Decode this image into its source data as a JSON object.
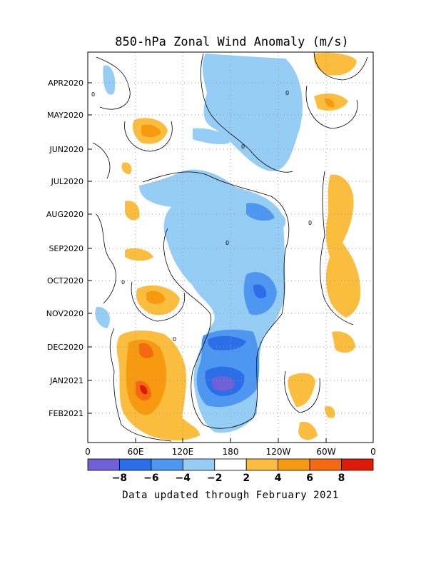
{
  "chart_data": {
    "type": "heatmap",
    "title": "850-hPa Zonal Wind Anomaly (m/s)",
    "y_tick_labels": [
      "APR2020",
      "MAY2020",
      "JUN2020",
      "JUL2020",
      "AUG2020",
      "SEP2020",
      "OCT2020",
      "NOV2020",
      "DEC2020",
      "JAN2021",
      "FEB2021"
    ],
    "x_tick_labels": [
      "0",
      "60E",
      "120E",
      "180",
      "120W",
      "60W",
      "0"
    ],
    "colorbar": {
      "tick_labels": [
        "-8",
        "-6",
        "-4",
        "-2",
        "2",
        "4",
        "6",
        "8"
      ],
      "bins": [
        {
          "range": "< -8",
          "color": "#7060d8"
        },
        {
          "range": "-8 to -6",
          "color": "#2c6ee8"
        },
        {
          "range": "-6 to -4",
          "color": "#4d97f0"
        },
        {
          "range": "-4 to -2",
          "color": "#96cdf5"
        },
        {
          "range": "-2 to 2",
          "color": "#ffffff"
        },
        {
          "range": "2 to 4",
          "color": "#fbbd3e"
        },
        {
          "range": "4 to 6",
          "color": "#f89a10"
        },
        {
          "range": "6 to 8",
          "color": "#f56a10"
        },
        {
          "range": "> 8",
          "color": "#dc1c08"
        }
      ]
    },
    "footer": "Data updated through February 2021",
    "anomaly_regions": [
      {
        "sign": "easterly",
        "level": "-2 to -4",
        "lon": "150E-120W",
        "period": "APR2020-JUN2020"
      },
      {
        "sign": "easterly",
        "level": "-2 to -6",
        "lon": "120E-150W",
        "period": "JUL2020-FEB2021"
      },
      {
        "sign": "easterly",
        "level": "< -8",
        "lon": "165E-175E",
        "period": "JAN2021"
      },
      {
        "sign": "westerly",
        "level": "2 to 8",
        "lon": "40E-100E",
        "period": "NOV2020-FEB2021"
      },
      {
        "sign": "westerly",
        "level": "2 to 4",
        "lon": "70W-40W",
        "period": "JUL2020-DEC2020"
      },
      {
        "sign": "westerly",
        "level": "2 to 6",
        "lon": "60E-90E",
        "period": "MAY2020"
      }
    ]
  }
}
